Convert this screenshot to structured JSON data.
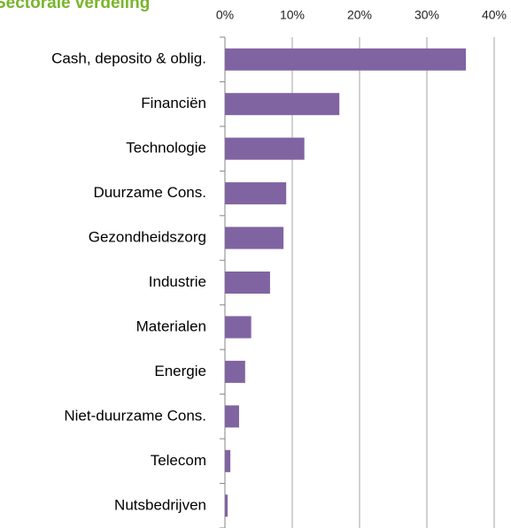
{
  "chart_data": {
    "type": "bar",
    "orientation": "horizontal",
    "title": "Sectorale verdeling",
    "categories": [
      "Cash, deposito & oblig.",
      "Financiën",
      "Technologie",
      "Duurzame Cons.",
      "Gezondheidszorg",
      "Industrie",
      "Materialen",
      "Energie",
      "Niet-duurzame Cons.",
      "Telecom",
      "Nutsbedrijven"
    ],
    "values": [
      35.8,
      17.0,
      11.8,
      9.1,
      8.7,
      6.7,
      3.9,
      3.0,
      2.1,
      0.8,
      0.4
    ],
    "color": "#8064a2",
    "xlim": [
      0,
      40
    ],
    "xticks": [
      {
        "value": 0,
        "label": "0%"
      },
      {
        "value": 10,
        "label": "10%"
      },
      {
        "value": 20,
        "label": "20%"
      },
      {
        "value": 30,
        "label": "30%"
      },
      {
        "value": 40,
        "label": "40%"
      }
    ],
    "grid": true
  }
}
